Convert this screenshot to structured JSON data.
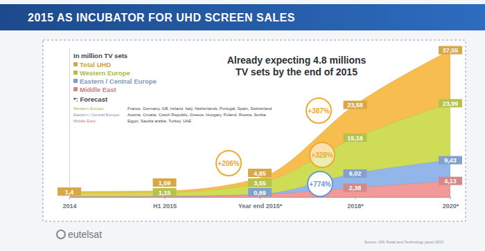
{
  "chart_data": {
    "type": "area",
    "title": "2015 AS INCUBATOR FOR UHD SCREEN SALES",
    "subtitle": [
      "Already expecting 4.8 millions",
      "TV sets by the end of 2015"
    ],
    "y_label": "In million TV sets",
    "note": "*: Forecast",
    "footnotes": [
      {
        "label": "Western Europe:",
        "text": "France, Germany, GB, Ireland, Italy, Netherlands, Portugal, Spain, Switzerland"
      },
      {
        "label": "Eastern / Central Europe:",
        "text": "Austria, Croatia, Czech Republic, Greece, Hungary, Poland, Russia, Serbia"
      },
      {
        "label": "Middle East:",
        "text": "Egypt, Saudia arabia, Turkey, UAE"
      }
    ],
    "annotations": [
      "+206%",
      "+387%",
      "+328%",
      "+774%"
    ],
    "logo": "eutelsat",
    "source": "Source: GfK Retail and Technology panel 2015",
    "categories": [
      "2014",
      "H1 2015",
      "Year end 2015*",
      "2018*",
      "2020*"
    ],
    "series": [
      {
        "name": "Total UHD",
        "color": "#f7bd4f",
        "values": [
          1.4,
          1.59,
          4.85,
          23.58,
          37.55
        ],
        "value_labels": [
          "1,4",
          "1,59",
          "4,85",
          "23,58",
          "37,55"
        ]
      },
      {
        "name": "Western Europe",
        "color": "#cfdc55",
        "values": [
          1.0,
          1.15,
          3.55,
          15.18,
          23.99
        ],
        "value_labels": [
          null,
          "1,15",
          "3,55",
          "15,18",
          "23,99"
        ]
      },
      {
        "name": "Eastern / Central Europe",
        "color": "#93b6ea",
        "values": [
          0.1,
          0.2,
          0.69,
          6.02,
          9.43
        ],
        "value_labels": [
          null,
          null,
          "0,69",
          "6,02",
          "9,43"
        ]
      },
      {
        "name": "Middle East",
        "color": "#f29a9a",
        "values": [
          0.05,
          0.1,
          0.6,
          2.38,
          4.13
        ],
        "value_labels": [
          null,
          null,
          null,
          "2,38",
          "4,13"
        ]
      }
    ],
    "ylim": [
      0,
      38
    ],
    "stacked": false,
    "grid": false,
    "legend": "top-left",
    "data_labels": true,
    "tick_labels": "x"
  }
}
